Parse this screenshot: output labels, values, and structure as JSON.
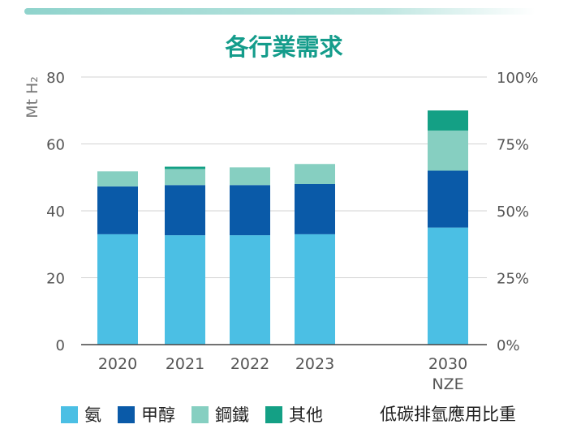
{
  "chart_data": {
    "type": "bar",
    "stacked": true,
    "title": "各行業需求",
    "ylabel_left": "Mt H₂",
    "ylim": [
      0,
      80
    ],
    "left_ticks": [
      "0",
      "20",
      "40",
      "60",
      "80"
    ],
    "right_ticks": [
      "0%",
      "25%",
      "50%",
      "75%",
      "100%"
    ],
    "categories": [
      {
        "label": "2020",
        "sub": ""
      },
      {
        "label": "2021",
        "sub": ""
      },
      {
        "label": "2022",
        "sub": ""
      },
      {
        "label": "2023",
        "sub": ""
      },
      {
        "label": "2030",
        "sub": "NZE"
      }
    ],
    "series": [
      {
        "name": "氨",
        "color": "#4bbfe4",
        "values": [
          33,
          32.7,
          32.7,
          33,
          35
        ]
      },
      {
        "name": "甲醇",
        "color": "#0a5aa8",
        "values": [
          14.3,
          15,
          15,
          15,
          17
        ]
      },
      {
        "name": "鋼鐵",
        "color": "#86cfc1",
        "values": [
          4.5,
          4.8,
          5.3,
          6,
          12
        ]
      },
      {
        "name": "其他",
        "color": "#14a085",
        "values": [
          0,
          0.7,
          0,
          0,
          6
        ]
      }
    ],
    "legend_note": "低碳排氫應用比重",
    "grid": true,
    "legend_position": "bottom"
  }
}
